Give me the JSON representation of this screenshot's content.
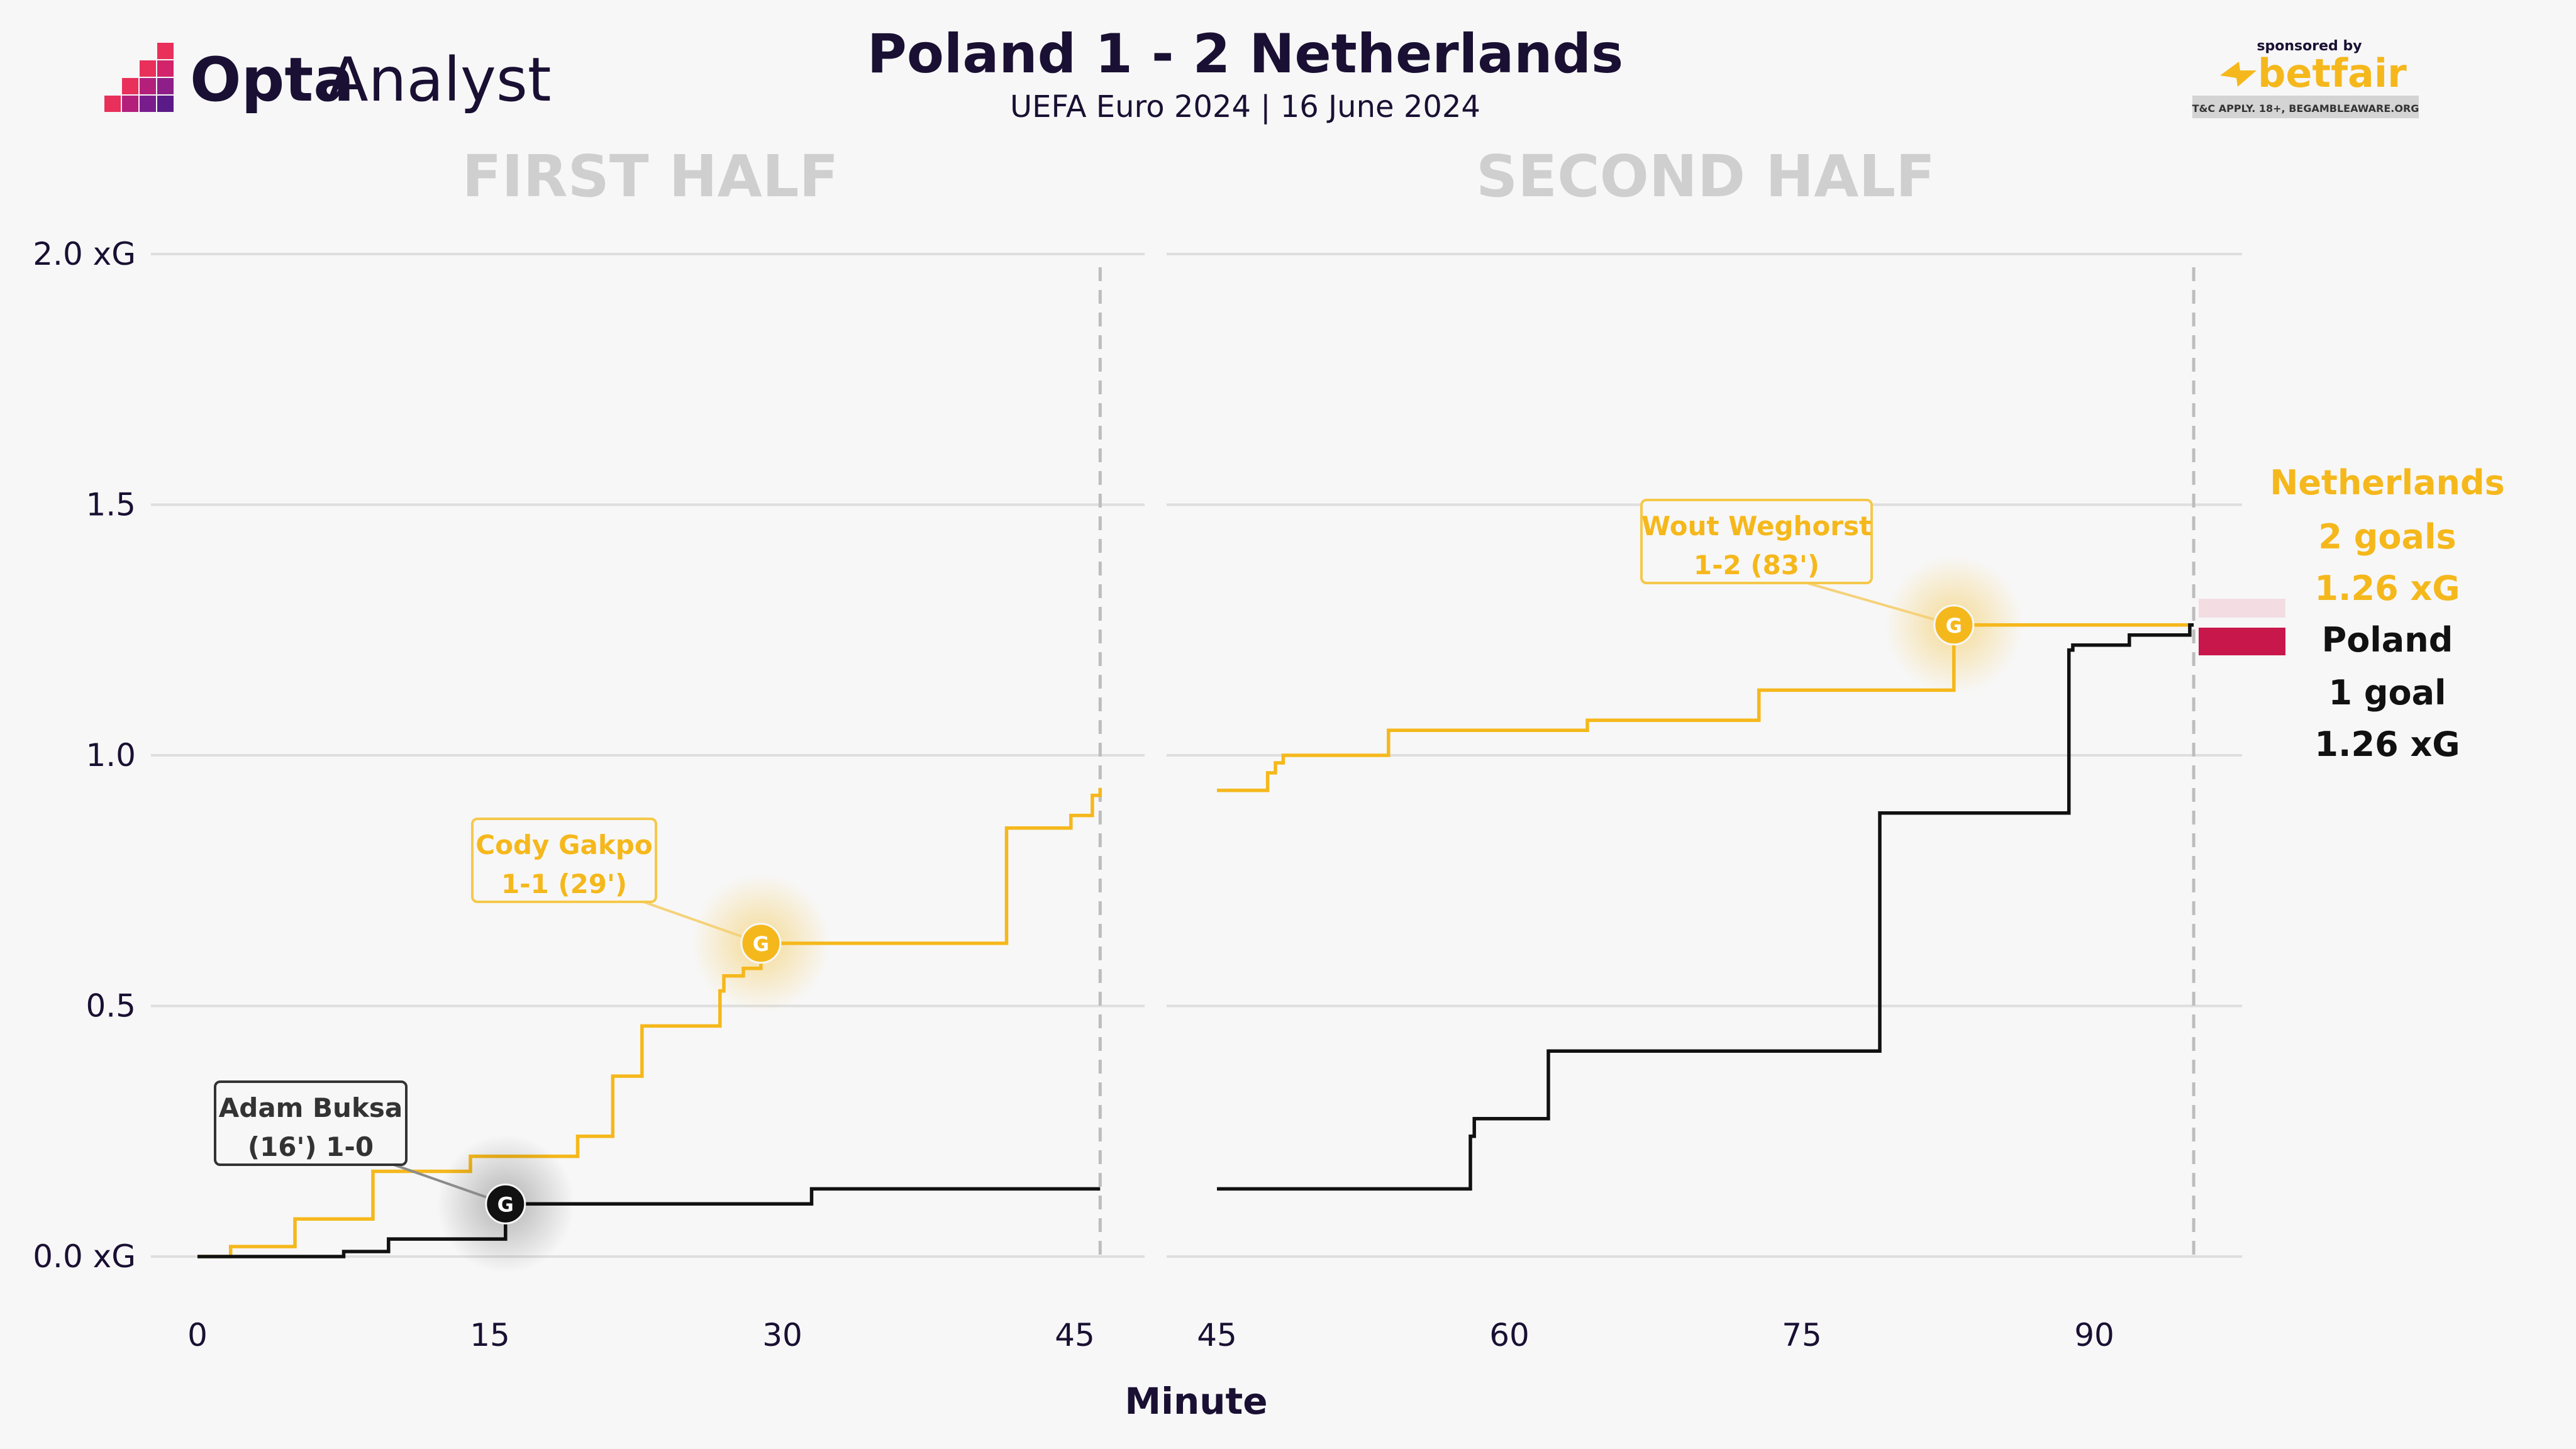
{
  "header": {
    "title": "Poland 1 - 2 Netherlands",
    "subtitle": "UEFA Euro 2024 | 16 June 2024"
  },
  "branding": {
    "logo_bold": "Opta",
    "logo_light": "Analyst",
    "sponsor_caption": "sponsored by",
    "sponsor_name": "betfair",
    "sponsor_disclaimer": "T&C APPLY. 18+, BEGAMBLEAWARE.ORG"
  },
  "colors": {
    "netherlands": "#f5b81c",
    "poland": "#111111",
    "grid": "#dedede",
    "flag_red": "#c8174a",
    "flag_white": "#f3dde2"
  },
  "chart_data": {
    "type": "line",
    "step": true,
    "xlabel": "Minute",
    "y_ticks": [
      "0.0 xG",
      "0.5",
      "1.0",
      "1.5",
      "2.0 xG"
    ],
    "ylim": [
      0,
      2.0
    ],
    "grid": true,
    "panels": [
      {
        "title": "FIRST HALF",
        "xlim": [
          0,
          47
        ],
        "x_ticks": [
          0,
          15,
          30,
          45
        ],
        "end_minute": 46.3
      },
      {
        "title": "SECOND HALF",
        "xlim": [
          45,
          96
        ],
        "x_ticks": [
          45,
          60,
          75,
          90
        ],
        "end_minute": 95.1
      }
    ],
    "series": [
      {
        "name": "Netherlands",
        "first_half": [
          [
            0,
            0
          ],
          [
            1.7,
            0
          ],
          [
            1.7,
            0.02
          ],
          [
            5,
            0.02
          ],
          [
            5,
            0.075
          ],
          [
            9,
            0.075
          ],
          [
            9,
            0.17
          ],
          [
            14,
            0.17
          ],
          [
            14,
            0.2
          ],
          [
            19.5,
            0.2
          ],
          [
            19.5,
            0.24
          ],
          [
            21.3,
            0.24
          ],
          [
            21.3,
            0.36
          ],
          [
            22.8,
            0.36
          ],
          [
            22.8,
            0.46
          ],
          [
            26.8,
            0.46
          ],
          [
            26.8,
            0.53
          ],
          [
            27,
            0.53
          ],
          [
            27,
            0.56
          ],
          [
            28,
            0.56
          ],
          [
            28,
            0.575
          ],
          [
            28.9,
            0.575
          ],
          [
            28.9,
            0.625
          ],
          [
            41.5,
            0.625
          ],
          [
            41.5,
            0.855
          ],
          [
            44.8,
            0.855
          ],
          [
            44.8,
            0.88
          ],
          [
            45.9,
            0.88
          ],
          [
            45.9,
            0.92
          ],
          [
            46.3,
            0.92
          ],
          [
            46.3,
            0.935
          ]
        ],
        "second_half": [
          [
            45,
            0.93
          ],
          [
            47.6,
            0.93
          ],
          [
            47.6,
            0.965
          ],
          [
            48,
            0.965
          ],
          [
            48,
            0.985
          ],
          [
            48.4,
            0.985
          ],
          [
            48.4,
            1.0
          ],
          [
            53.8,
            1.0
          ],
          [
            53.8,
            1.05
          ],
          [
            64,
            1.05
          ],
          [
            64,
            1.07
          ],
          [
            72.8,
            1.07
          ],
          [
            72.8,
            1.13
          ],
          [
            82.8,
            1.13
          ],
          [
            82.8,
            1.26
          ],
          [
            95.1,
            1.26
          ]
        ]
      },
      {
        "name": "Poland",
        "first_half": [
          [
            0,
            0
          ],
          [
            7.5,
            0
          ],
          [
            7.5,
            0.01
          ],
          [
            9.8,
            0.01
          ],
          [
            9.8,
            0.035
          ],
          [
            15.8,
            0.035
          ],
          [
            15.8,
            0.105
          ],
          [
            31.5,
            0.105
          ],
          [
            31.5,
            0.135
          ],
          [
            46.3,
            0.135
          ]
        ],
        "second_half": [
          [
            45,
            0.135
          ],
          [
            58,
            0.135
          ],
          [
            58,
            0.24
          ],
          [
            58.2,
            0.24
          ],
          [
            58.2,
            0.275
          ],
          [
            62,
            0.275
          ],
          [
            62,
            0.41
          ],
          [
            79,
            0.41
          ],
          [
            79,
            0.885
          ],
          [
            88.7,
            0.885
          ],
          [
            88.7,
            1.21
          ],
          [
            88.9,
            1.21
          ],
          [
            88.9,
            1.22
          ],
          [
            91.8,
            1.22
          ],
          [
            91.8,
            1.24
          ],
          [
            94.9,
            1.24
          ],
          [
            94.9,
            1.26
          ],
          [
            95.1,
            1.26
          ]
        ]
      }
    ],
    "goals": [
      {
        "team": "Poland",
        "half": 0,
        "minute": 15.8,
        "xg": 0.105,
        "marker": "G",
        "label_line1": "Adam Buksa",
        "label_line2": "(16') 1-0"
      },
      {
        "team": "Netherlands",
        "half": 0,
        "minute": 28.9,
        "xg": 0.625,
        "marker": "G",
        "label_line1": "Cody Gakpo",
        "label_line2": "1-1 (29')"
      },
      {
        "team": "Netherlands",
        "half": 1,
        "minute": 82.8,
        "xg": 1.26,
        "marker": "G",
        "label_line1": "Wout Weghorst",
        "label_line2": "1-2 (83')"
      }
    ],
    "totals": [
      {
        "team": "Netherlands",
        "goals": "2 goals",
        "xg": "1.26 xG"
      },
      {
        "team": "Poland",
        "goals": "1 goal",
        "xg": "1.26 xG"
      }
    ]
  }
}
